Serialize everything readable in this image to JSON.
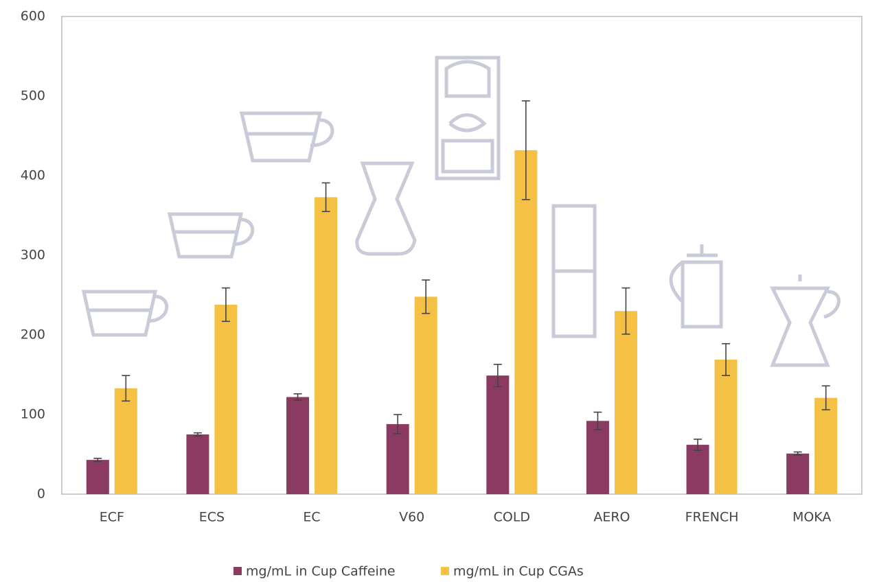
{
  "chart_data": {
    "type": "bar",
    "categories": [
      "ECF",
      "ECS",
      "EC",
      "V60",
      "COLD",
      "AERO",
      "FRENCH",
      "MOKA"
    ],
    "series": [
      {
        "name": "mg/mL in Cup Caffeine",
        "color": "#8b3a62",
        "values": [
          43,
          75,
          122,
          88,
          149,
          92,
          62,
          51
        ],
        "errors": [
          2,
          2,
          4,
          12,
          14,
          11,
          7,
          2
        ]
      },
      {
        "name": "mg/mL in Cup CGAs",
        "color": "#f4c145",
        "values": [
          133,
          238,
          373,
          248,
          432,
          230,
          169,
          121
        ],
        "errors": [
          16,
          21,
          18,
          21,
          62,
          29,
          20,
          15
        ]
      }
    ],
    "ylim": [
      0,
      600
    ],
    "yticks": [
      0,
      100,
      200,
      300,
      400,
      500,
      600
    ],
    "grid": false,
    "legend": "bottom"
  }
}
